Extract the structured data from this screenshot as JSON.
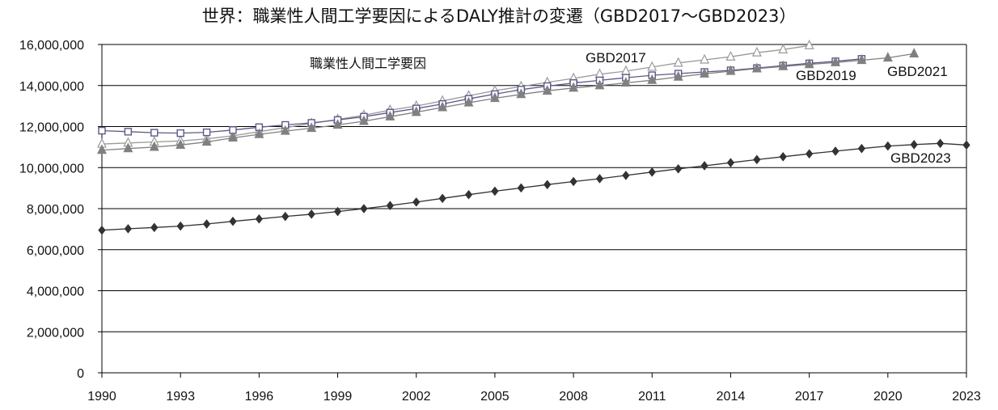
{
  "chart_data": {
    "type": "line",
    "title": "世界：職業性人間工学要因によるDALY推計の変遷（GBD2017～GBD2023）",
    "annotation": "職業性人間工学要因",
    "xlabel": "",
    "ylabel": "",
    "xlim": [
      1990,
      2023
    ],
    "ylim": [
      0,
      16000000
    ],
    "x_ticks": [
      1990,
      1993,
      1996,
      1999,
      2002,
      2005,
      2008,
      2011,
      2014,
      2017,
      2020,
      2023
    ],
    "y_ticks": [
      0,
      2000000,
      4000000,
      6000000,
      8000000,
      10000000,
      12000000,
      14000000,
      16000000
    ],
    "y_tick_labels": [
      "0",
      "2,000,000",
      "4,000,000",
      "6,000,000",
      "8,000,000",
      "10,000,000",
      "12,000,000",
      "14,000,000",
      "16,000,000"
    ],
    "grid": "horizontal",
    "legend": "inline labels",
    "series": [
      {
        "name": "GBD2017",
        "color": "#9a9a9a",
        "marker": "triangle-open",
        "x": [
          1990,
          1991,
          1992,
          1993,
          1994,
          1995,
          1996,
          1997,
          1998,
          1999,
          2000,
          2001,
          2002,
          2003,
          2004,
          2005,
          2006,
          2007,
          2008,
          2009,
          2010,
          2011,
          2012,
          2013,
          2014,
          2015,
          2016,
          2017
        ],
        "y": [
          11150000,
          11200000,
          11250000,
          11300000,
          11400000,
          11550000,
          11750000,
          11950000,
          12150000,
          12350000,
          12550000,
          12800000,
          13000000,
          13250000,
          13500000,
          13750000,
          13950000,
          14150000,
          14350000,
          14550000,
          14700000,
          14900000,
          15100000,
          15250000,
          15400000,
          15600000,
          15750000,
          15950000
        ]
      },
      {
        "name": "GBD2019",
        "color": "#5a5a88",
        "marker": "square-open",
        "x": [
          1990,
          1991,
          1992,
          1993,
          1994,
          1995,
          1996,
          1997,
          1998,
          1999,
          2000,
          2001,
          2002,
          2003,
          2004,
          2005,
          2006,
          2007,
          2008,
          2009,
          2010,
          2011,
          2012,
          2013,
          2014,
          2015,
          2016,
          2017,
          2018,
          2019
        ],
        "y": [
          11800000,
          11750000,
          11700000,
          11680000,
          11720000,
          11830000,
          11970000,
          12080000,
          12180000,
          12320000,
          12480000,
          12680000,
          12880000,
          13100000,
          13350000,
          13580000,
          13800000,
          13970000,
          14120000,
          14250000,
          14380000,
          14500000,
          14580000,
          14660000,
          14740000,
          14850000,
          14970000,
          15080000,
          15180000,
          15300000
        ]
      },
      {
        "name": "GBD2021",
        "color": "#808080",
        "marker": "triangle-filled",
        "x": [
          1990,
          1991,
          1992,
          1993,
          1994,
          1995,
          1996,
          1997,
          1998,
          1999,
          2000,
          2001,
          2002,
          2003,
          2004,
          2005,
          2006,
          2007,
          2008,
          2009,
          2010,
          2011,
          2012,
          2013,
          2014,
          2015,
          2016,
          2017,
          2018,
          2019,
          2020,
          2021
        ],
        "y": [
          10850000,
          10930000,
          11000000,
          11100000,
          11250000,
          11450000,
          11620000,
          11780000,
          11920000,
          12080000,
          12260000,
          12480000,
          12700000,
          12930000,
          13160000,
          13380000,
          13570000,
          13740000,
          13880000,
          14000000,
          14130000,
          14260000,
          14420000,
          14570000,
          14700000,
          14820000,
          14930000,
          15030000,
          15120000,
          15230000,
          15350000,
          15550000
        ]
      },
      {
        "name": "GBD2023",
        "color": "#333333",
        "marker": "diamond-filled",
        "x": [
          1990,
          1991,
          1992,
          1993,
          1994,
          1995,
          1996,
          1997,
          1998,
          1999,
          2000,
          2001,
          2002,
          2003,
          2004,
          2005,
          2006,
          2007,
          2008,
          2009,
          2010,
          2011,
          2012,
          2013,
          2014,
          2015,
          2016,
          2017,
          2018,
          2019,
          2020,
          2021,
          2022,
          2023
        ],
        "y": [
          6950000,
          7020000,
          7080000,
          7150000,
          7250000,
          7380000,
          7500000,
          7620000,
          7730000,
          7860000,
          8000000,
          8150000,
          8320000,
          8500000,
          8680000,
          8850000,
          9010000,
          9170000,
          9320000,
          9460000,
          9620000,
          9780000,
          9940000,
          10090000,
          10240000,
          10390000,
          10530000,
          10670000,
          10800000,
          10930000,
          11050000,
          11120000,
          11180000,
          11100000
        ]
      }
    ]
  }
}
